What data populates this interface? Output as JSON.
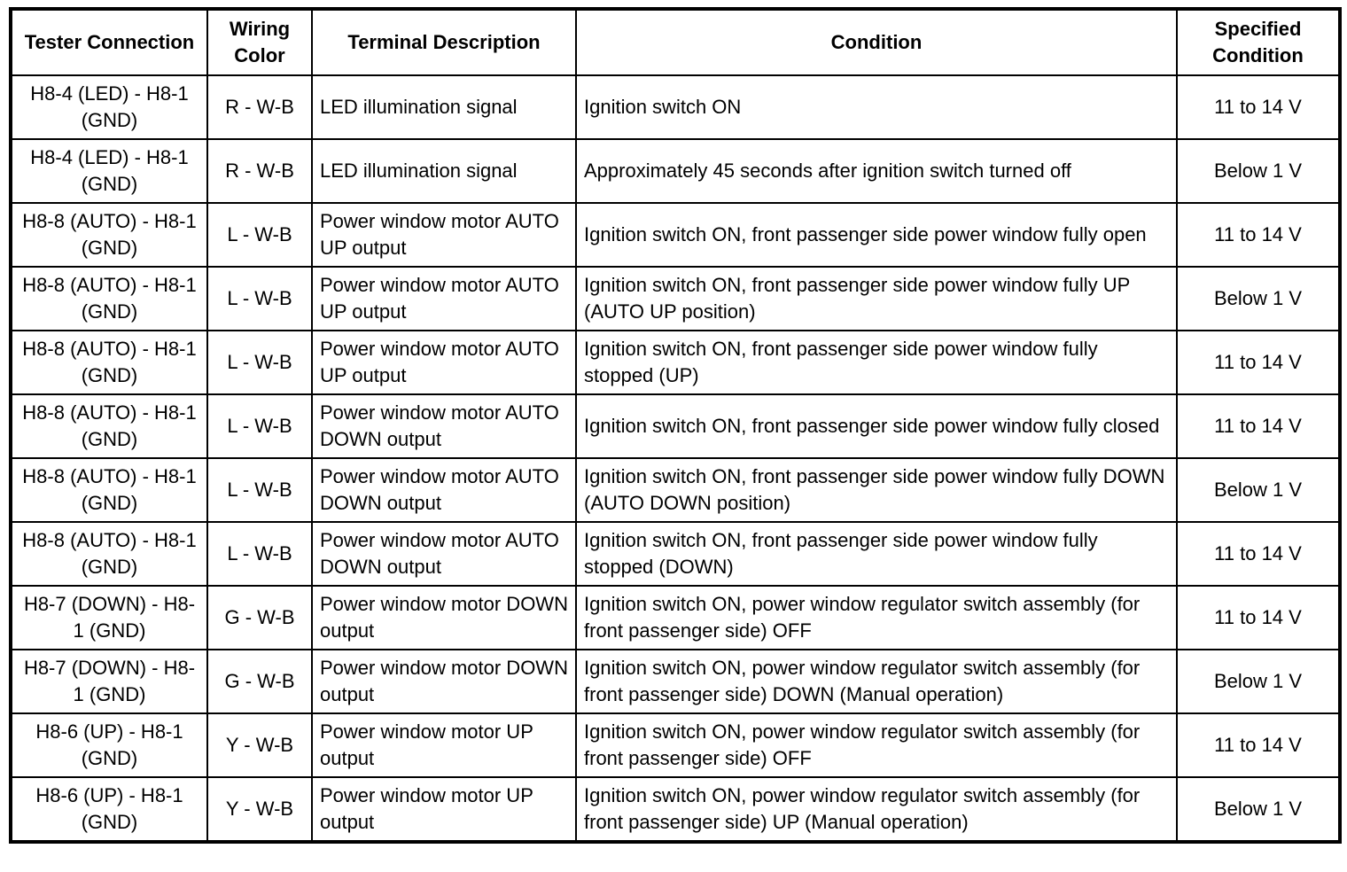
{
  "table": {
    "headers": [
      "Tester Connection",
      "Wiring Color",
      "Terminal Description",
      "Condition",
      "Specified Condition"
    ],
    "rows": [
      [
        "H8-4 (LED) - H8-1 (GND)",
        "R - W-B",
        "LED illumination signal",
        "Ignition switch ON",
        "11 to 14 V"
      ],
      [
        "H8-4 (LED) - H8-1 (GND)",
        "R - W-B",
        "LED illumination signal",
        "Approximately 45 seconds after ignition switch turned off",
        "Below 1 V"
      ],
      [
        "H8-8 (AUTO) - H8-1 (GND)",
        "L - W-B",
        "Power window motor AUTO UP output",
        "Ignition switch ON, front passenger side power window fully open",
        "11 to 14 V"
      ],
      [
        "H8-8 (AUTO) - H8-1 (GND)",
        "L - W-B",
        "Power window motor AUTO UP output",
        "Ignition switch ON, front passenger side power window fully UP (AUTO UP position)",
        "Below 1 V"
      ],
      [
        "H8-8 (AUTO) - H8-1 (GND)",
        "L - W-B",
        "Power window motor AUTO UP output",
        "Ignition switch ON, front passenger side power window fully stopped (UP)",
        "11 to 14 V"
      ],
      [
        "H8-8 (AUTO) - H8-1 (GND)",
        "L - W-B",
        "Power window motor AUTO DOWN output",
        "Ignition switch ON, front passenger side power window fully closed",
        "11 to 14 V"
      ],
      [
        "H8-8 (AUTO) - H8-1 (GND)",
        "L - W-B",
        "Power window motor AUTO DOWN output",
        "Ignition switch ON, front passenger side power window fully DOWN (AUTO DOWN position)",
        "Below 1 V"
      ],
      [
        "H8-8 (AUTO) - H8-1 (GND)",
        "L - W-B",
        "Power window motor AUTO DOWN output",
        "Ignition switch ON, front passenger side power window fully stopped (DOWN)",
        "11 to 14 V"
      ],
      [
        "H8-7 (DOWN) - H8-1 (GND)",
        "G - W-B",
        "Power window motor DOWN output",
        "Ignition switch ON, power window regulator switch assembly (for front passenger side) OFF",
        "11 to 14 V"
      ],
      [
        "H8-7 (DOWN) - H8-1 (GND)",
        "G - W-B",
        "Power window motor DOWN output",
        "Ignition switch ON, power window regulator switch assembly (for front passenger side) DOWN (Manual operation)",
        "Below 1 V"
      ],
      [
        "H8-6 (UP) - H8-1 (GND)",
        "Y - W-B",
        "Power window motor UP output",
        "Ignition switch ON, power window regulator switch assembly (for front passenger side) OFF",
        "11 to 14 V"
      ],
      [
        "H8-6 (UP) - H8-1 (GND)",
        "Y - W-B",
        "Power window motor UP output",
        "Ignition switch ON, power window regulator switch assembly (for front passenger side) UP (Manual operation)",
        "Below 1 V"
      ]
    ]
  }
}
